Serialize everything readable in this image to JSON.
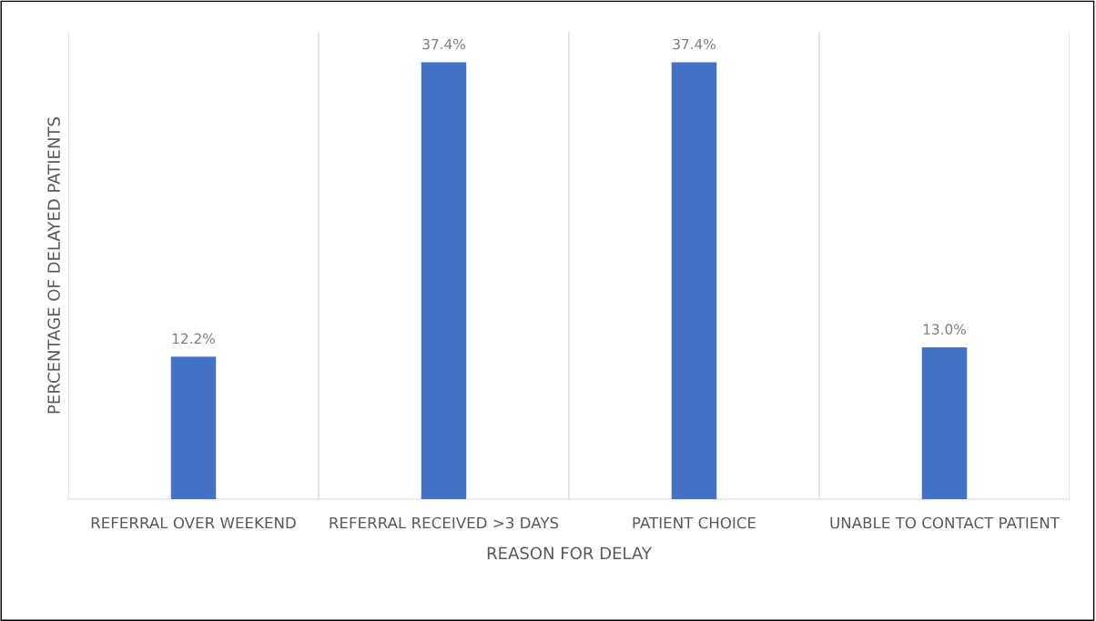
{
  "chart_data": {
    "type": "bar",
    "xlabel": "REASON FOR DELAY",
    "ylabel": "PERCENTAGE OF DELAYED PATIENTS",
    "categories": [
      "REFERRAL OVER WEEKEND",
      "REFERRAL RECEIVED >3 DAYS",
      "PATIENT CHOICE",
      "UNABLE TO CONTACT PATIENT"
    ],
    "values": [
      12.2,
      37.4,
      37.4,
      13.0
    ],
    "value_labels": [
      "12.2%",
      "37.4%",
      "37.4%",
      "13.0%"
    ],
    "color": "#4472c4",
    "ylim": [
      0,
      40
    ],
    "grid": "x",
    "tick_labels": "x"
  }
}
